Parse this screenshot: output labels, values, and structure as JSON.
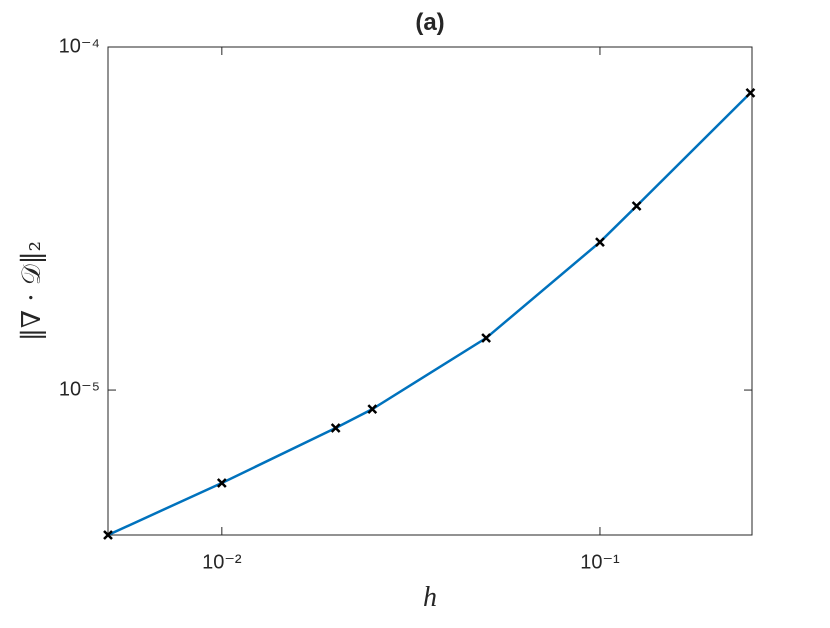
{
  "chart_data": {
    "type": "line",
    "title": "(a)",
    "xlabel": "h",
    "ylabel": "‖∇ · 𝒟‖₂",
    "x": [
      0.005,
      0.01,
      0.02,
      0.025,
      0.05,
      0.1,
      0.125,
      0.25
    ],
    "series": [
      {
        "color": "#0072bd",
        "marker_color": "#000000",
        "values": [
          3.78e-06,
          5.36e-06,
          7.75e-06,
          8.8e-06,
          1.418e-05,
          2.7e-05,
          3.44e-05,
          7.35e-05
        ]
      }
    ],
    "xscale": "log",
    "yscale": "log",
    "xlim": [
      0.005,
      0.2524
    ],
    "ylim": [
      3.78e-06,
      0.0001
    ],
    "xticks": [
      {
        "value": 0.01,
        "label": "10⁻²"
      },
      {
        "value": 0.1,
        "label": "10⁻¹"
      }
    ],
    "yticks": [
      {
        "value": 1e-05,
        "label": "10⁻⁵"
      },
      {
        "value": 0.0001,
        "label": "10⁻⁴"
      }
    ]
  }
}
